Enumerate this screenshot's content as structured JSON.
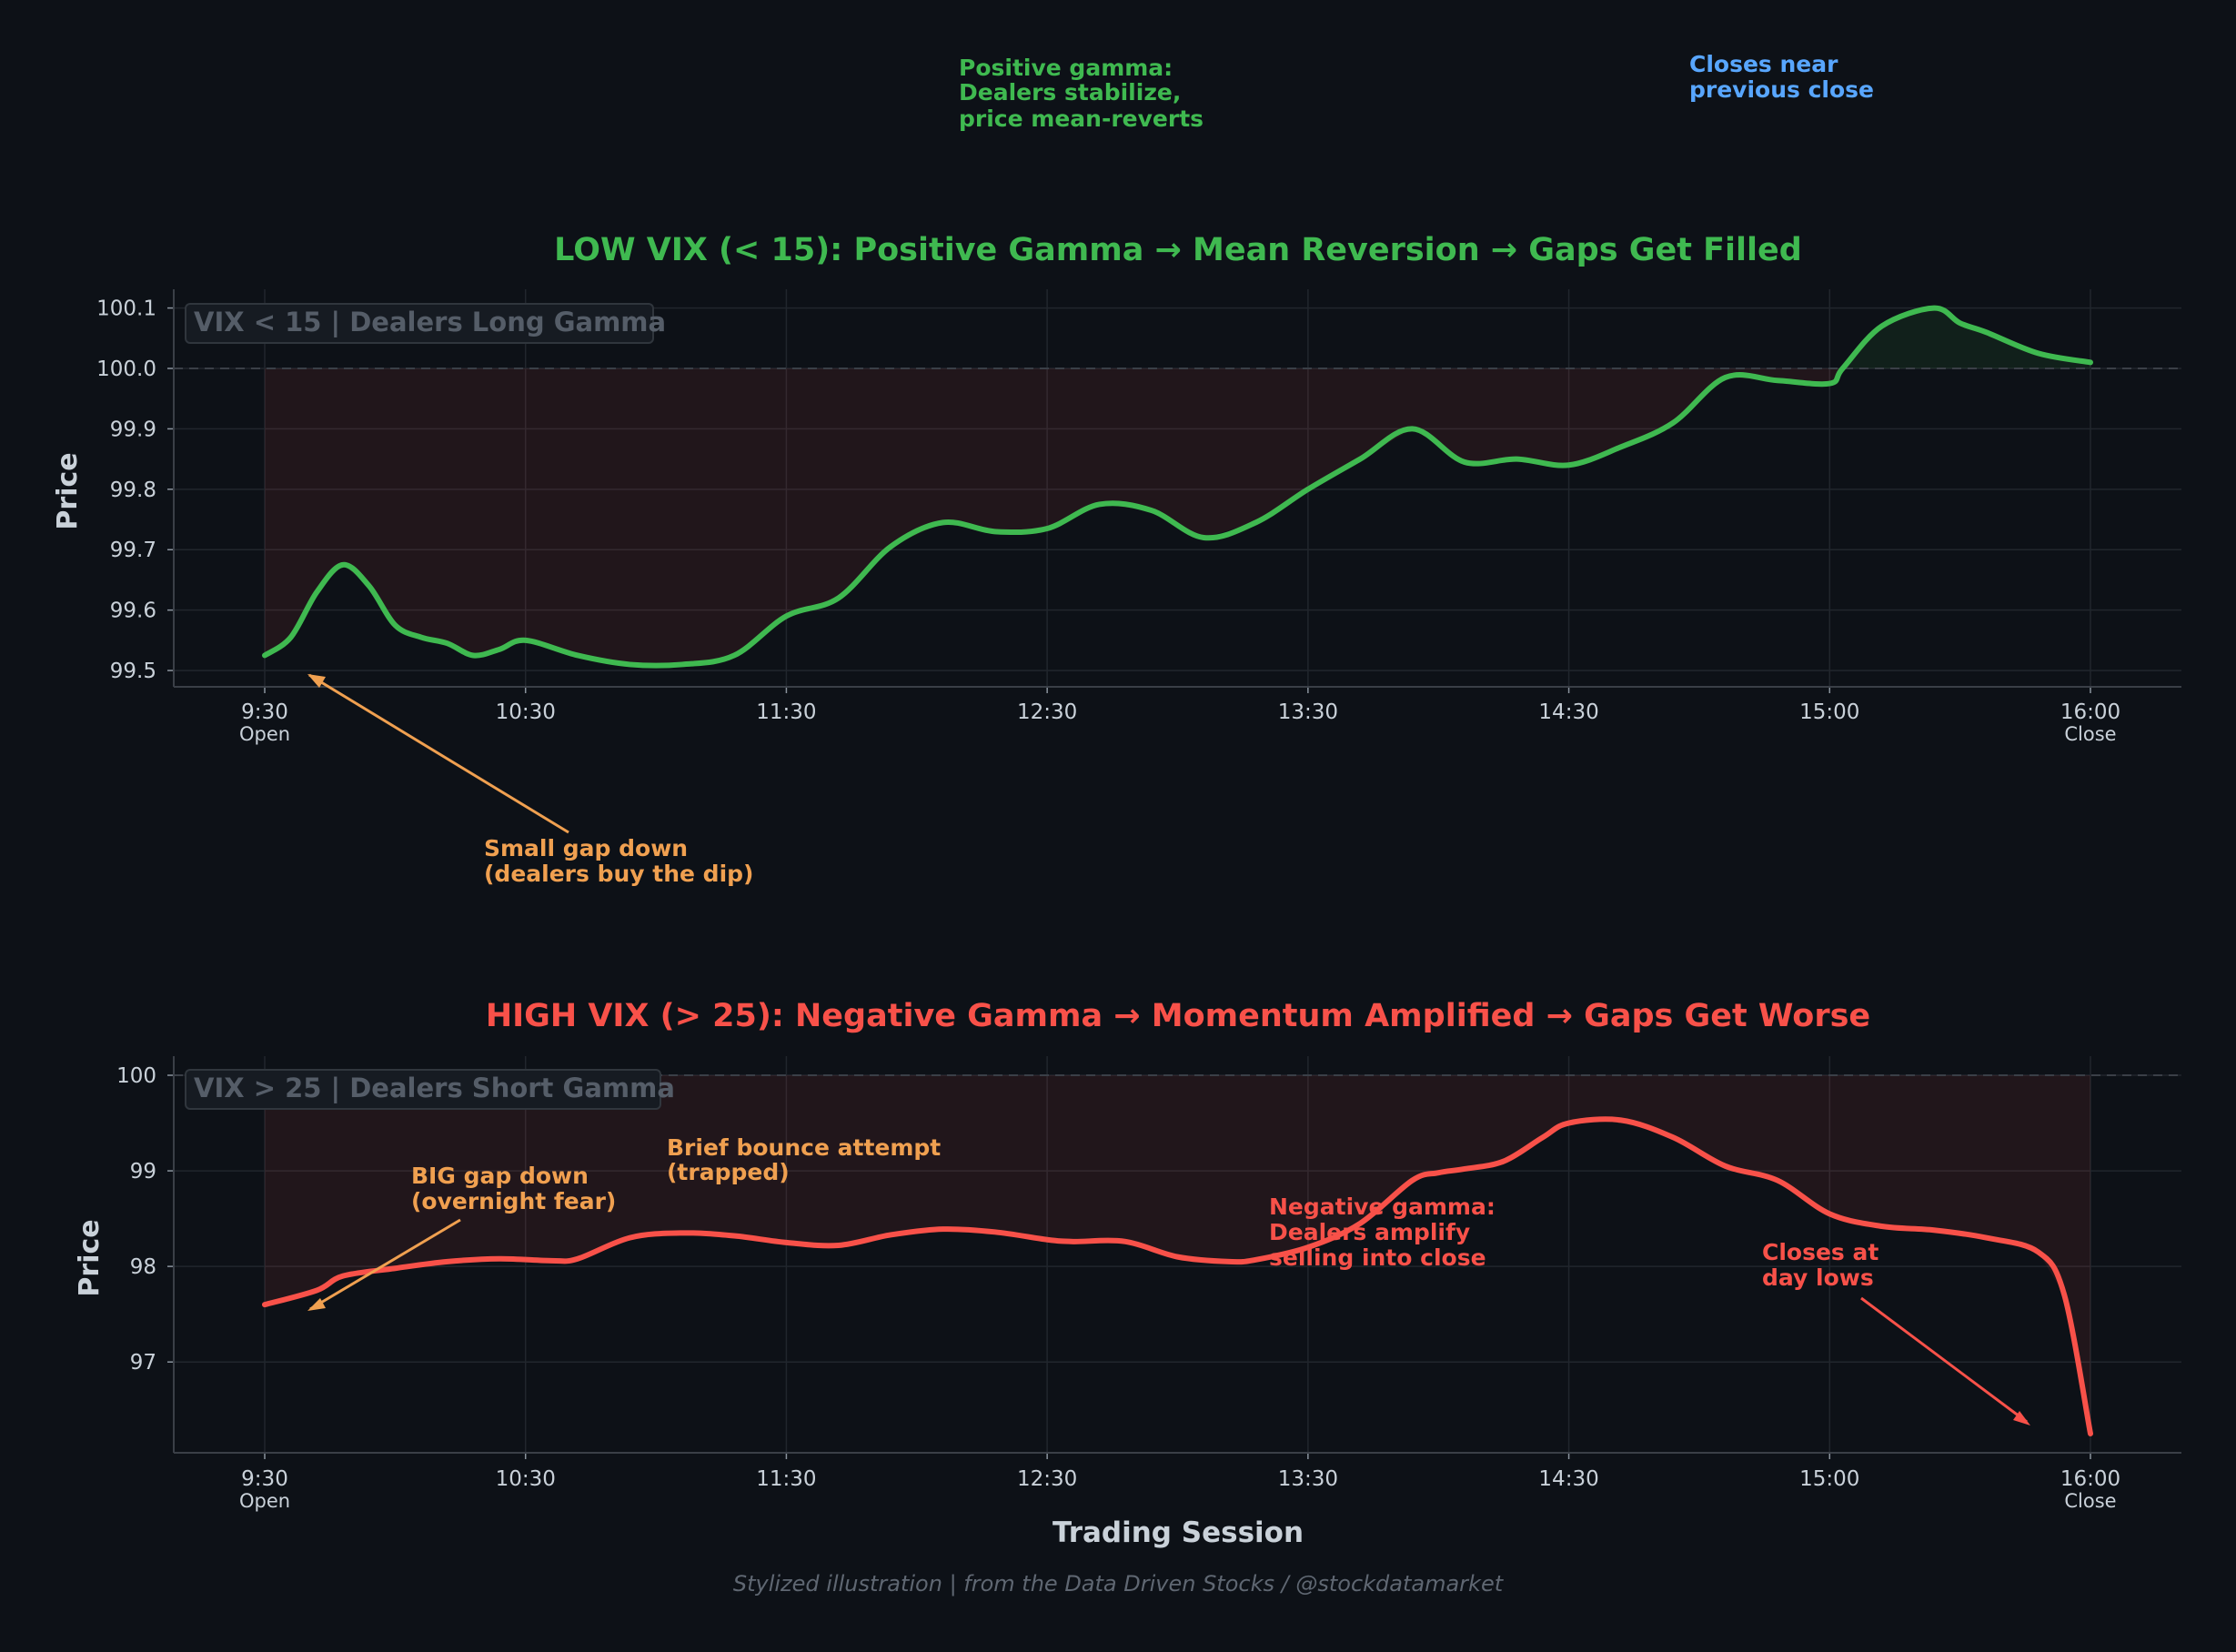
{
  "colors": {
    "background": "#0d1117",
    "green": "#3fb950",
    "red": "#f85149",
    "orange": "#f0a050",
    "blue": "#58a6ff",
    "grid": "#21262d",
    "axis": "#8b949e",
    "text": "#c9d1d9"
  },
  "top_notes": {
    "positive_gamma": [
      "Positive gamma:",
      "Dealers stabilize,",
      "price mean-reverts"
    ],
    "closes_near": [
      "Closes near",
      "previous close"
    ]
  },
  "chart_data": [
    {
      "type": "line",
      "title": "LOW VIX (< 15): Positive Gamma → Mean Reversion → Gaps Get Filled",
      "ylabel": "Price",
      "xlabel": "",
      "badge": "VIX < 15 | Dealers Long Gamma",
      "grid": true,
      "reference_line": 100.0,
      "x_ticks": [
        {
          "label": "9:30",
          "sub": "Open"
        },
        {
          "label": "10:30",
          "sub": ""
        },
        {
          "label": "11:30",
          "sub": ""
        },
        {
          "label": "12:30",
          "sub": ""
        },
        {
          "label": "13:30",
          "sub": ""
        },
        {
          "label": "14:30",
          "sub": ""
        },
        {
          "label": "15:00",
          "sub": ""
        },
        {
          "label": "16:00",
          "sub": "Close"
        }
      ],
      "y_ticks": [
        "99.5",
        "99.6",
        "99.7",
        "99.8",
        "99.9",
        "100.0",
        "100.1"
      ],
      "ylim": [
        99.473,
        100.131
      ],
      "series": [
        {
          "color": "#3fb950",
          "x": [
            0,
            0.1,
            0.2,
            0.3,
            0.4,
            0.5,
            0.6,
            0.7,
            0.8,
            0.9,
            1.0,
            1.2,
            1.4,
            1.6,
            1.8,
            2.0,
            2.2,
            2.4,
            2.6,
            2.8,
            3.0,
            3.2,
            3.4,
            3.6,
            3.8,
            4.0,
            4.2,
            4.4,
            4.6,
            4.8,
            5.0,
            5.2,
            5.4,
            5.6,
            5.8,
            6.0,
            6.05,
            6.2,
            6.4,
            6.5,
            6.6,
            6.8,
            7.0
          ],
          "values": [
            99.525,
            99.555,
            99.63,
            99.675,
            99.64,
            99.575,
            99.555,
            99.545,
            99.525,
            99.535,
            99.55,
            99.525,
            99.51,
            99.51,
            99.525,
            99.59,
            99.62,
            99.705,
            99.745,
            99.73,
            99.735,
            99.775,
            99.765,
            99.72,
            99.745,
            99.8,
            99.85,
            99.9,
            99.845,
            99.85,
            99.84,
            99.87,
            99.91,
            99.985,
            99.98,
            99.975,
            100.0,
            100.07,
            100.1,
            100.075,
            100.06,
            100.025,
            100.01
          ]
        }
      ],
      "annotations": [
        {
          "text": [
            "Small gap down",
            "(dealers buy the dip)"
          ],
          "color": "#f0a050",
          "arrow_to": [
            0.17,
            99.49
          ]
        }
      ]
    },
    {
      "type": "line",
      "title": "HIGH VIX (> 25): Negative Gamma → Momentum Amplified → Gaps Get Worse",
      "ylabel": "Price",
      "xlabel": "Trading Session",
      "badge": "VIX > 25 | Dealers Short Gamma",
      "grid": true,
      "reference_line": 100.0,
      "x_ticks": [
        {
          "label": "9:30",
          "sub": "Open"
        },
        {
          "label": "10:30",
          "sub": ""
        },
        {
          "label": "11:30",
          "sub": ""
        },
        {
          "label": "12:30",
          "sub": ""
        },
        {
          "label": "13:30",
          "sub": ""
        },
        {
          "label": "14:30",
          "sub": ""
        },
        {
          "label": "15:00",
          "sub": ""
        },
        {
          "label": "16:00",
          "sub": "Close"
        }
      ],
      "y_ticks": [
        "97",
        "98",
        "99",
        "100"
      ],
      "ylim": [
        96.05,
        100.2
      ],
      "series": [
        {
          "color": "#f85149",
          "x": [
            0,
            0.2,
            0.3,
            0.5,
            0.7,
            0.9,
            1.1,
            1.2,
            1.4,
            1.6,
            1.8,
            2.0,
            2.2,
            2.4,
            2.6,
            2.8,
            3.0,
            3.1,
            3.3,
            3.5,
            3.7,
            3.8,
            4.0,
            4.2,
            4.4,
            4.5,
            4.6,
            4.75,
            4.9,
            5.0,
            5.2,
            5.4,
            5.6,
            5.8,
            6.0,
            6.2,
            6.4,
            6.6,
            6.8,
            6.9,
            7.0
          ],
          "values": [
            97.6,
            97.75,
            97.9,
            97.98,
            98.05,
            98.08,
            98.06,
            98.08,
            98.3,
            98.35,
            98.32,
            98.25,
            98.22,
            98.33,
            98.39,
            98.36,
            98.28,
            98.26,
            98.26,
            98.1,
            98.05,
            98.07,
            98.2,
            98.45,
            98.9,
            98.98,
            99.02,
            99.1,
            99.35,
            99.5,
            99.53,
            99.35,
            99.05,
            98.9,
            98.55,
            98.42,
            98.38,
            98.3,
            98.15,
            97.7,
            96.25
          ]
        }
      ],
      "annotations": [
        {
          "text": [
            "BIG gap down",
            "(overnight fear)"
          ],
          "color": "#f0a050",
          "arrow_to": [
            0.17,
            97.55
          ]
        },
        {
          "text": [
            "Brief bounce attempt",
            "(trapped)"
          ],
          "color": "#f0a050"
        },
        {
          "text": [
            "Negative gamma:",
            "Dealers amplify",
            "selling into close"
          ],
          "color": "#f85149"
        },
        {
          "text": [
            "Closes at",
            "day lows"
          ],
          "color": "#f85149",
          "arrow_to": [
            6.78,
            96.3
          ]
        }
      ]
    }
  ],
  "footer": "Stylized illustration | from the Data Driven Stocks / @stockdatamarket"
}
